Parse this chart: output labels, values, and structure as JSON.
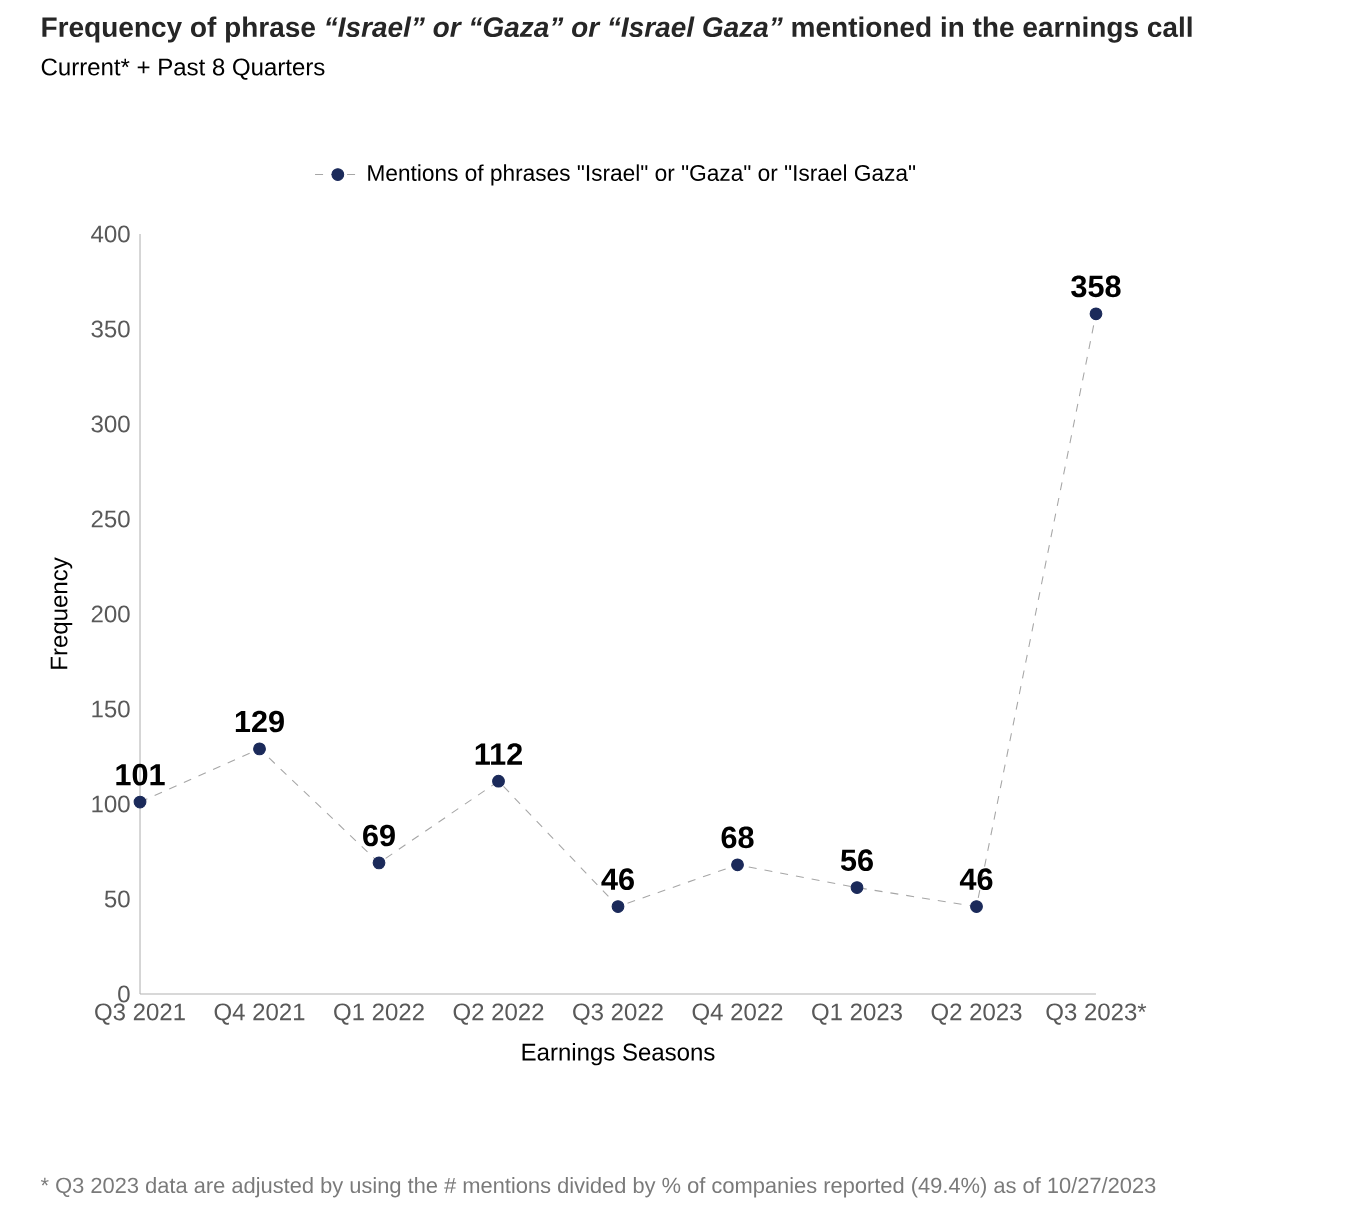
{
  "chart_data": {
    "type": "line",
    "title": "Frequency of phrase *“Israel” or “Gaza” or “Israel Gaza”* mentioned in the earnings call",
    "subtitle": "Current* + Past 8 Quarters",
    "xlabel": "Earnings Seasons",
    "ylabel": "Frequency",
    "categories": [
      "Q3 2021",
      "Q4 2021",
      "Q1 2022",
      "Q2 2022",
      "Q3 2022",
      "Q4 2022",
      "Q1 2023",
      "Q2 2023",
      "Q3 2023*"
    ],
    "series": [
      {
        "name": "Mentions of phrases \"Israel\" or \"Gaza\" or \"Israel Gaza\"",
        "color": "#1b2a5a",
        "values": [
          101,
          129,
          69,
          112,
          46,
          68,
          56,
          46,
          358
        ]
      }
    ],
    "ylim": [
      0,
      400
    ],
    "yticks": [
      0,
      50,
      100,
      150,
      200,
      250,
      300,
      350,
      400
    ],
    "data_labels": true,
    "legend": "top",
    "marker": "circle",
    "line_style": "dashed",
    "annotations": [
      "* Q3 2023 data are adjusted by using the # mentions divided by % of companies reported (49.4%) as of 10/27/2023"
    ]
  }
}
